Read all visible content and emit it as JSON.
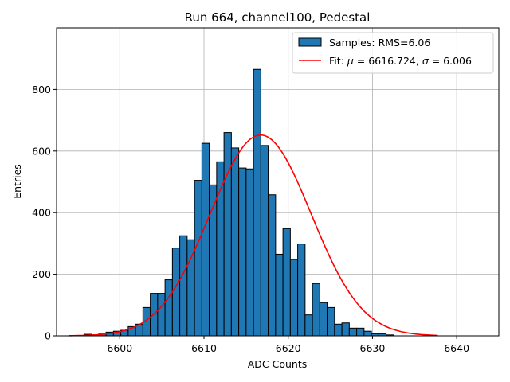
{
  "chart_data": {
    "type": "histogram",
    "title": "Run 664, channel100, Pedestal",
    "xlabel": "ADC Counts",
    "ylabel": "Entries",
    "xlim": [
      6592.5,
      6645.0
    ],
    "ylim": [
      0,
      1000
    ],
    "xticks": [
      6600,
      6610,
      6620,
      6630,
      6640
    ],
    "yticks": [
      0,
      200,
      400,
      600,
      800
    ],
    "grid": true,
    "legend_position": "top-right",
    "colors": {
      "bars": "#1f77b4",
      "bar_edge": "#000000",
      "fit": "#ff0000",
      "grid": "#b0b0b0"
    },
    "legend": [
      {
        "key": "samples",
        "label": "Samples: RMS=6.06",
        "kind": "patch"
      },
      {
        "key": "fit",
        "label_prefix": "Fit: ",
        "mu_symbol": "μ",
        "mu_text": " = 6616.724, ",
        "sigma_symbol": "σ",
        "sigma_text": " = 6.006",
        "kind": "line"
      }
    ],
    "histogram": {
      "bin_edges": [
        6594.0,
        6594.875,
        6595.75,
        6596.625,
        6597.5,
        6598.375,
        6599.25,
        6600.125,
        6601.0,
        6601.875,
        6602.75,
        6603.625,
        6604.5,
        6605.375,
        6606.25,
        6607.125,
        6608.0,
        6608.875,
        6609.75,
        6610.625,
        6611.5,
        6612.375,
        6613.25,
        6614.125,
        6615.0,
        6615.875,
        6616.75,
        6617.625,
        6618.5,
        6619.375,
        6620.25,
        6621.125,
        6622.0,
        6622.875,
        6623.75,
        6624.625,
        6625.5,
        6626.375,
        6627.25,
        6628.125,
        6629.0,
        6629.875,
        6630.75,
        6631.625,
        6632.5,
        6633.375,
        6634.25,
        6635.125,
        6636.0,
        6636.875,
        6637.75
      ],
      "counts": [
        0,
        0,
        5,
        3,
        6,
        12,
        15,
        18,
        30,
        38,
        92,
        138,
        138,
        182,
        285,
        325,
        312,
        505,
        625,
        490,
        565,
        660,
        610,
        545,
        542,
        865,
        618,
        458,
        265,
        348,
        248,
        298,
        68,
        170,
        108,
        92,
        38,
        42,
        25,
        25,
        15,
        7,
        7,
        3,
        0,
        0,
        0,
        0,
        0,
        0
      ]
    },
    "fit": {
      "model": "gaussian",
      "amplitude": 652,
      "mu": 6616.724,
      "sigma": 6.006,
      "x_range": [
        6594.0,
        6637.75
      ]
    }
  }
}
